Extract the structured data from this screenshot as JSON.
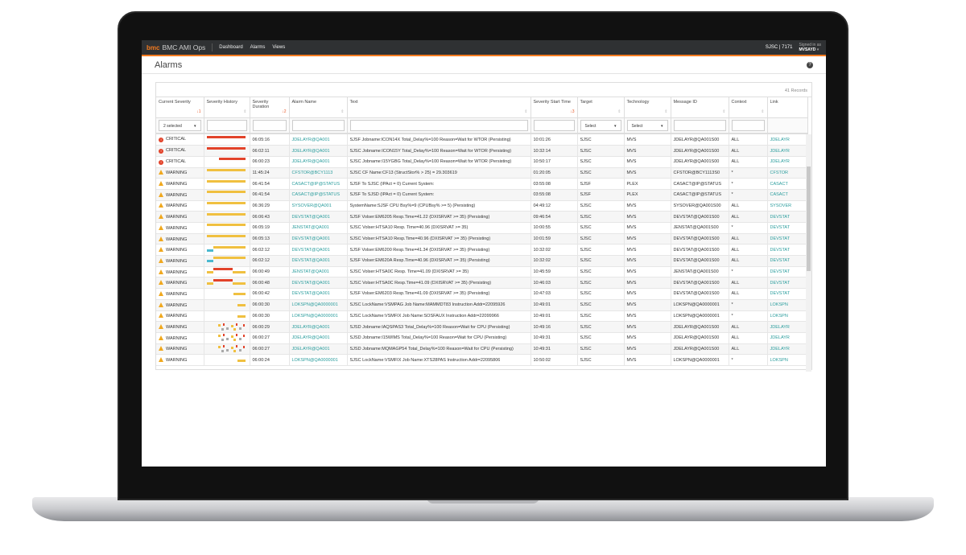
{
  "nav": {
    "logo": "bmc",
    "app": "BMC AMI Ops",
    "links": [
      "Dashboard",
      "Alarms",
      "Views"
    ],
    "system": "SJSC | 7171",
    "signed_in_label": "Signed in as",
    "user": "MVSAYD"
  },
  "page": {
    "title": "Alarms",
    "records": "41 Records"
  },
  "columns": [
    "Current Severity",
    "Severity History",
    "Severity Duration",
    "Alarm Name",
    "Text",
    "Severity Start Time",
    "Target",
    "Technology",
    "Message ID",
    "Context",
    "Link"
  ],
  "filters": {
    "severity": "2 selected",
    "target": "Select",
    "technology": "Select"
  },
  "colors": {
    "critical": "#e2432a",
    "warning": "#f0c040",
    "info": "#4ab8d0",
    "accent": "#f47b20",
    "link": "#2a9d9d"
  },
  "rows": [
    [
      "CRITICAL",
      "crit-full",
      "06:05:16",
      "JDELAYR@QA001",
      "SJSF Jobname:ICON14X Total_Delay%=100 Reason=Wait for WTOR (Persisting)",
      "10:01:26",
      "SJSC",
      "MVS",
      "JDELAYR@QA001S00",
      "ALL",
      "JDELAYR"
    ],
    [
      "CRITICAL",
      "crit-full",
      "06:02:11",
      "JDELAYR@QA001",
      "SJSC Jobname:ICON15Y Total_Delay%=100 Reason=Wait for WTOR (Persisting)",
      "10:32:14",
      "SJSC",
      "MVS",
      "JDELAYR@QA001S00",
      "ALL",
      "JDELAYR"
    ],
    [
      "CRITICAL",
      "crit-part",
      "06:00:23",
      "JDELAYR@QA001",
      "SJSC Jobname:I15YGBG Total_Delay%=100 Reason=Wait for WTOR (Persisting)",
      "10:50:17",
      "SJSC",
      "MVS",
      "JDELAYR@QA001S00",
      "ALL",
      "JDELAYR"
    ],
    [
      "WARNING",
      "warn-full",
      "11:45:24",
      "CFSTOR@BCY1113",
      "SJSC CF Name:CF13 (StructStor% > 25) = 29.303619",
      "01:20:05",
      "SJSC",
      "MVS",
      "CFSTOR@BCY1113S0",
      "*",
      "CFSTOR"
    ],
    [
      "WARNING",
      "warn-full",
      "06:41:54",
      "CASACT@IP@STATUS",
      "SJSF To SJSC (IPAct = 0) Current System:",
      "03:55:08",
      "SJSF",
      "PLEX",
      "CASACT@IP@STATUS",
      "*",
      "CASACT"
    ],
    [
      "WARNING",
      "warn-full",
      "06:41:54",
      "CASACT@IP@STATUS",
      "SJSF To SJSD (IPAct = 0) Current System:",
      "03:55:08",
      "SJSF",
      "PLEX",
      "CASACT@IP@STATUS",
      "*",
      "CASACT"
    ],
    [
      "WARNING",
      "warn-full",
      "06:36:29",
      "SYSOVER@QA001",
      "SystemName:SJSF CPU Bsy%=9 (CPUBsy% >= 5) (Persisting)",
      "04:49:12",
      "SJSC",
      "MVS",
      "SYSOVER@QA001S00",
      "ALL",
      "SYSOVER"
    ],
    [
      "WARNING",
      "warn-full",
      "06:06:43",
      "DEVSTAT@QA001",
      "SJSF Volser:EM6205 Resp.Time=41.22 (DXISRVAT >= 35) (Persisting)",
      "09:46:54",
      "SJSC",
      "MVS",
      "DEVSTAT@QA001S00",
      "ALL",
      "DEVSTAT"
    ],
    [
      "WARNING",
      "warn-full",
      "06:05:19",
      "JENSTAT@QA001",
      "SJSC Volser:HTSA10 Resp. Time=40.96 (DXISRVAT >= 35)",
      "10:00:55",
      "SJSC",
      "MVS",
      "JENSTAT@QA001S00",
      "*",
      "DEVSTAT"
    ],
    [
      "WARNING",
      "warn-full",
      "06:05:13",
      "DEVSTAT@QA001",
      "SJSC Volser:HTSA10 Resp.Time=40.96 (DXISRVAT >= 35) (Persisting)",
      "10:01:59",
      "SJSC",
      "MVS",
      "DEVSTAT@QA001S00",
      "ALL",
      "DEVSTAT"
    ],
    [
      "WARNING",
      "info-warn",
      "06:02:12",
      "DEVSTAT@QA001",
      "SJSF Volser:EM6200 Resp.Time=41.34 (DXISRVAT >= 35) (Persisting)",
      "10:32:02",
      "SJSC",
      "MVS",
      "DEVSTAT@QA001S00",
      "ALL",
      "DEVSTAT"
    ],
    [
      "WARNING",
      "info-warn",
      "06:02:12",
      "DEVSTAT@QA001",
      "SJSF Volser:EM620A Resp.Time=40.96 (DXISRVAT >= 35) (Persisting)",
      "10:32:02",
      "SJSC",
      "MVS",
      "DEVSTAT@QA001S00",
      "ALL",
      "DEVSTAT"
    ],
    [
      "WARNING",
      "warn-crit-warn",
      "06:00:49",
      "JENSTAT@QA001",
      "SJSC Volser:HTSA0C Resp. Time=41.09 (DXISRVAT >= 35)",
      "10:45:59",
      "SJSC",
      "MVS",
      "JENSTAT@QA001S00",
      "*",
      "DEVSTAT"
    ],
    [
      "WARNING",
      "warn-crit-warn",
      "06:00:48",
      "DEVSTAT@QA001",
      "SJSC Volser:HTSA0C Resp.Time=41.09 (DXISRVAT >= 35) (Persisting)",
      "10:46:03",
      "SJSC",
      "MVS",
      "DEVSTAT@QA001S00",
      "ALL",
      "DEVSTAT"
    ],
    [
      "WARNING",
      "warn-short",
      "06:00:42",
      "DEVSTAT@QA001",
      "SJSF Volser:EM6203 Resp.Time=41.09 (DXISRVAT >= 35) (Persisting)",
      "10:47:03",
      "SJSC",
      "MVS",
      "DEVSTAT@QA001S00",
      "ALL",
      "DEVSTAT"
    ],
    [
      "WARNING",
      "warn-tiny",
      "06:00:30",
      "LOKSPN@QA0000001",
      "SJSC LockName:VSMPAG Job Name:MAMMDT83 Instruction Addr=22095926",
      "10:49:01",
      "SJSC",
      "MVS",
      "LOKSPN@QA0000001",
      "*",
      "LOKSPN"
    ],
    [
      "WARNING",
      "warn-tiny",
      "06:00:30",
      "LOKSPN@QA0000001",
      "SJSC LockName:VSMFIX Job Name:SOSFAUX Instruction Addr=22099966",
      "10:49:01",
      "SJSC",
      "MVS",
      "LOKSPN@QA0000001",
      "*",
      "LOKSPN"
    ],
    [
      "WARNING",
      "mixed",
      "06:00:29",
      "JDELAYR@QA001",
      "SJSD Jobname:IAQSPAS3 Total_Delay%=100 Reason=Wait for CPU (Persisting)",
      "10:49:16",
      "SJSC",
      "MVS",
      "JDELAYR@QA001S00",
      "ALL",
      "JDELAYR"
    ],
    [
      "WARNING",
      "mixed",
      "06:00:27",
      "JDELAYR@QA001",
      "SJSD Jobname:I15WIMS Total_Delay%=100 Reason=Wait for CPU (Persisting)",
      "10:49:31",
      "SJSC",
      "MVS",
      "JDELAYR@QA001S00",
      "ALL",
      "JDELAYR"
    ],
    [
      "WARNING",
      "mixed",
      "06:00:27",
      "JDELAYR@QA001",
      "SJSD Jobname:MQMAGP54 Total_Delay%=100 Reason=Wait for CPU (Persisting)",
      "10:49:31",
      "SJSC",
      "MVS",
      "JDELAYR@QA001S00",
      "ALL",
      "JDELAYR"
    ],
    [
      "WARNING",
      "warn-tiny",
      "06:00:24",
      "LOKSPN@QA0000001",
      "SJSC LockName:VSMFIX Job Name:XTS28PAS Instruction Addr=22095806",
      "10:50:02",
      "SJSC",
      "MVS",
      "LOKSPN@QA0000001",
      "*",
      "LOKSPN"
    ]
  ]
}
